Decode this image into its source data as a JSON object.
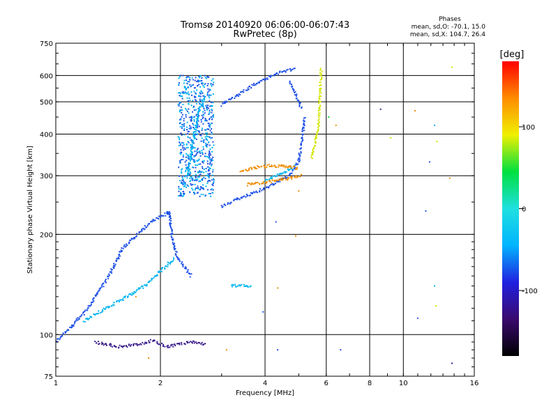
{
  "chart_data": {
    "type": "scatter",
    "title": "Tromsø 20140920 06:06:00-06:07:43",
    "subtitle": "RwPretec (8p)",
    "xlabel": "Frequency [MHz]",
    "ylabel": "Stationary phase Virtual Height [km]",
    "x_scale": "log",
    "y_scale": "log",
    "xlim": [
      1,
      16
    ],
    "ylim": [
      75,
      750
    ],
    "x_ticks": [
      1,
      2,
      4,
      6,
      8,
      10,
      16
    ],
    "y_ticks": [
      75,
      100,
      200,
      300,
      400,
      500,
      600,
      750
    ],
    "grid": true,
    "stats": {
      "heading": "Phases",
      "line_o": "mean, sd,O: -70.1, 15.0",
      "line_x": "mean, sd,X: 104.7, 26.4"
    },
    "colorbar": {
      "label": "[deg]",
      "range": [
        -180,
        180
      ],
      "ticks": [
        100,
        0,
        -100
      ],
      "stops": [
        "#000000",
        "#3a0a6e",
        "#2020e0",
        "#00b4ff",
        "#20e0e0",
        "#00e040",
        "#f0f000",
        "#ff8c00",
        "#ff0000"
      ]
    },
    "series": [
      {
        "color": "#1e50e6",
        "segments": [
          {
            "x": [
              2.45,
              2.25,
              2.17,
              2.14,
              2.12,
              2.11,
              2.1
            ],
            "y": [
              150,
              168,
              190,
              215,
              230,
              232,
              232
            ]
          },
          {
            "x": [
              2.1,
              1.9,
              1.72,
              1.55,
              1.42,
              1.3,
              1.2,
              1.1,
              1.0
            ],
            "y": [
              232,
              220,
              200,
              180,
              150,
              130,
              115,
              105,
              95
            ]
          },
          {
            "x": [
              3.0,
              3.4,
              3.9,
              4.3,
              4.7,
              5.0,
              5.1,
              5.2
            ],
            "y": [
              243,
              258,
              272,
              285,
              300,
              330,
              380,
              450
            ]
          },
          {
            "x": [
              3.0,
              3.4,
              3.8,
              4.2,
              4.6,
              4.9
            ],
            "y": [
              490,
              530,
              570,
              600,
              620,
              625
            ]
          },
          {
            "x": [
              4.7,
              4.9,
              5.1
            ],
            "y": [
              575,
              525,
              480
            ]
          }
        ],
        "band": {
          "x_start": 2.25,
          "x_end": 2.85,
          "y_start": 260,
          "y_end": 600
        }
      },
      {
        "color": "#00b4f0",
        "segments": [
          {
            "x": [
              2.4,
              2.5,
              2.6,
              2.7
            ],
            "y": [
              300,
              400,
              480,
              520
            ]
          },
          {
            "x": [
              1.2,
              1.4,
              1.6,
              1.8,
              2.0,
              2.2
            ],
            "y": [
              110,
              120,
              130,
              140,
              155,
              170
            ]
          },
          {
            "x": [
              3.2,
              3.35,
              3.5,
              3.65
            ],
            "y": [
              140,
              140,
              140,
              140
            ]
          },
          {
            "x": [
              4.0,
              4.3,
              4.6,
              4.9
            ],
            "y": [
              290,
              300,
              310,
              320
            ]
          }
        ]
      },
      {
        "color": "#f08c00",
        "segments": [
          {
            "x": [
              3.4,
              3.8,
              4.2,
              4.6,
              5.0
            ],
            "y": [
              310,
              318,
              322,
              320,
              315
            ]
          },
          {
            "x": [
              3.55,
              3.9,
              4.3,
              4.7,
              5.1
            ],
            "y": [
              282,
              285,
              290,
              295,
              300
            ]
          }
        ]
      },
      {
        "color": "#d2e600",
        "segments": [
          {
            "x": [
              5.45,
              5.6,
              5.7,
              5.75,
              5.8
            ],
            "y": [
              340,
              380,
              430,
              500,
              630
            ]
          }
        ]
      },
      {
        "color": "#3c1e8c",
        "segments": [
          {
            "x": [
              1.3,
              1.5,
              1.7,
              1.9,
              2.1,
              2.3,
              2.5,
              2.7
            ],
            "y": [
              95,
              92,
              93,
              96,
              92,
              94,
              95,
              93
            ]
          }
        ]
      }
    ],
    "scatter": [
      {
        "x": 8.6,
        "y": 475,
        "color": "#3c1e8c"
      },
      {
        "x": 9.2,
        "y": 390,
        "color": "#d2e600"
      },
      {
        "x": 10.8,
        "y": 470,
        "color": "#f08c00"
      },
      {
        "x": 11.9,
        "y": 330,
        "color": "#1e50e6"
      },
      {
        "x": 12.3,
        "y": 425,
        "color": "#00b4f0"
      },
      {
        "x": 12.5,
        "y": 380,
        "color": "#d2e600"
      },
      {
        "x": 13.8,
        "y": 635,
        "color": "#d2e600"
      },
      {
        "x": 13.6,
        "y": 295,
        "color": "#f08c00"
      },
      {
        "x": 11.6,
        "y": 235,
        "color": "#1e50e6"
      },
      {
        "x": 12.3,
        "y": 140,
        "color": "#00b4f0"
      },
      {
        "x": 12.4,
        "y": 122,
        "color": "#d2e600"
      },
      {
        "x": 11.0,
        "y": 112,
        "color": "#1e50e6"
      },
      {
        "x": 13.8,
        "y": 82,
        "color": "#3c1e8c"
      },
      {
        "x": 6.6,
        "y": 90,
        "color": "#1e50e6"
      },
      {
        "x": 4.35,
        "y": 90,
        "color": "#1e50e6"
      },
      {
        "x": 3.1,
        "y": 90,
        "color": "#f08c00"
      },
      {
        "x": 4.35,
        "y": 138,
        "color": "#f08c00"
      },
      {
        "x": 3.95,
        "y": 117,
        "color": "#1e50e6"
      },
      {
        "x": 4.3,
        "y": 218,
        "color": "#1e50e6"
      },
      {
        "x": 4.9,
        "y": 198,
        "color": "#f08c00"
      },
      {
        "x": 6.1,
        "y": 450,
        "color": "#00e040"
      },
      {
        "x": 6.4,
        "y": 425,
        "color": "#f08c00"
      },
      {
        "x": 5.0,
        "y": 270,
        "color": "#f08c00"
      },
      {
        "x": 1.7,
        "y": 130,
        "color": "#f08c00"
      },
      {
        "x": 1.85,
        "y": 85,
        "color": "#f08c00"
      }
    ]
  }
}
